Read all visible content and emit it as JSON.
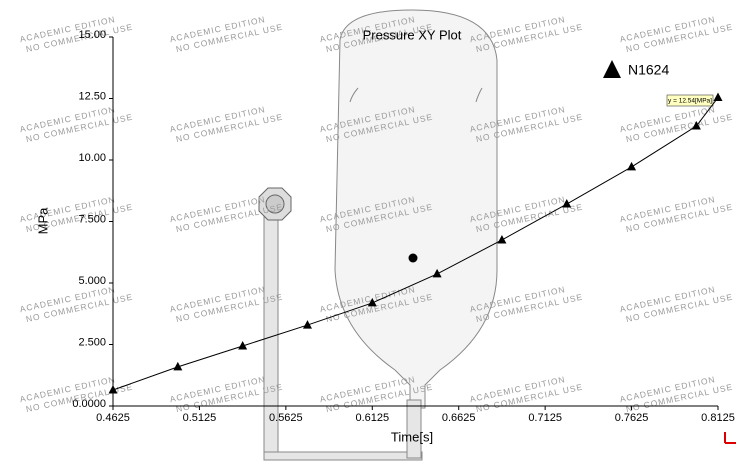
{
  "chart_data": {
    "type": "line",
    "title": "Pressure XY Plot",
    "x_label": "Time[s]",
    "y_label": "MPa",
    "x": [
      0.4625,
      0.5,
      0.5375,
      0.575,
      0.6125,
      0.65,
      0.6875,
      0.725,
      0.7625,
      0.8,
      0.8125
    ],
    "series": [
      {
        "name": "N1624",
        "color": "#000000",
        "values": [
          0.65,
          1.59,
          2.44,
          3.29,
          4.19,
          5.37,
          6.75,
          8.21,
          9.72,
          11.38,
          12.54
        ]
      }
    ],
    "probe_label": "y = 12.54[MPa]",
    "xlim": [
      0.4625,
      0.8125
    ],
    "xticks": [
      0.4625,
      0.5125,
      0.5625,
      0.6125,
      0.6625,
      0.7125,
      0.7625,
      0.8125
    ],
    "ylim": [
      0,
      15
    ],
    "yticks": [
      {
        "value": 0,
        "label": "0.0000"
      },
      {
        "value": 2.5,
        "label": "2.500"
      },
      {
        "value": 5,
        "label": "5.000"
      },
      {
        "value": 7.5,
        "label": "7.500"
      },
      {
        "value": 10,
        "label": "10.00"
      },
      {
        "value": 12.5,
        "label": "12.50"
      },
      {
        "value": 15,
        "label": "15.00"
      }
    ],
    "grid": false,
    "watermark": [
      "ACADEMIC EDITION",
      "NO COMMERCIAL USE"
    ]
  }
}
